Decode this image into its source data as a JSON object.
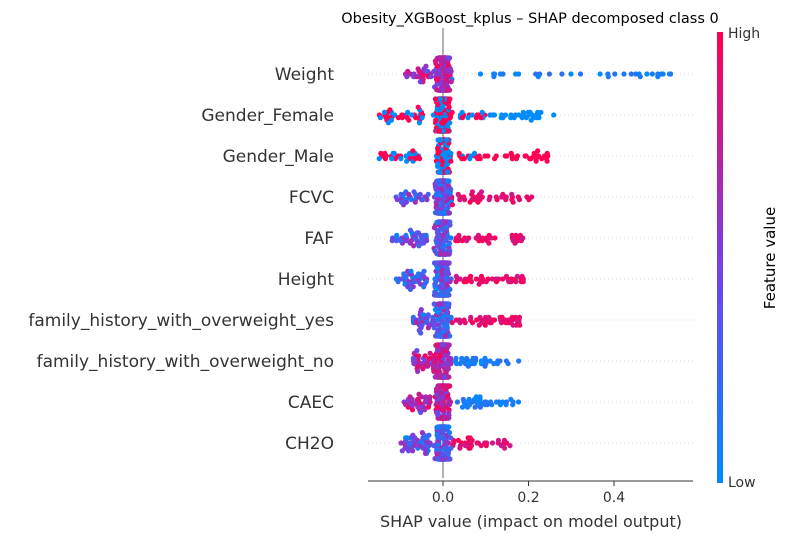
{
  "chart_data": {
    "type": "scatter",
    "title": "Obesity_XGBoost_kplus – SHAP decomposed class 0",
    "xlabel": "SHAP value (impact on model output)",
    "xlim": [
      -0.18,
      0.58
    ],
    "xticks": [
      {
        "value": 0.0,
        "label": "0.0"
      },
      {
        "value": 0.2,
        "label": "0.2"
      },
      {
        "value": 0.4,
        "label": "0.4"
      }
    ],
    "colorbar": {
      "label": "Feature value",
      "high_label": "High",
      "low_label": "Low",
      "low_color": "#008bfb",
      "high_color": "#ff0052"
    },
    "features": [
      {
        "name": "Weight",
        "min": -0.09,
        "max": 0.55,
        "bias": "low-right"
      },
      {
        "name": "Gender_Female",
        "min": -0.15,
        "max": 0.26,
        "bias": "female"
      },
      {
        "name": "Gender_Male",
        "min": -0.15,
        "max": 0.25,
        "bias": "male"
      },
      {
        "name": "FCVC",
        "min": -0.11,
        "max": 0.21,
        "bias": "high-right"
      },
      {
        "name": "FAF",
        "min": -0.12,
        "max": 0.19,
        "bias": "high-right"
      },
      {
        "name": "Height",
        "min": -0.11,
        "max": 0.19,
        "bias": "high-right"
      },
      {
        "name": "family_history_with_overweight_yes",
        "min": -0.07,
        "max": 0.18,
        "bias": "high-right"
      },
      {
        "name": "family_history_with_overweight_no",
        "min": -0.07,
        "max": 0.18,
        "bias": "low-right"
      },
      {
        "name": "CAEC",
        "min": -0.1,
        "max": 0.18,
        "bias": "low-right"
      },
      {
        "name": "CH2O",
        "min": -0.1,
        "max": 0.16,
        "bias": "high-right"
      }
    ]
  }
}
